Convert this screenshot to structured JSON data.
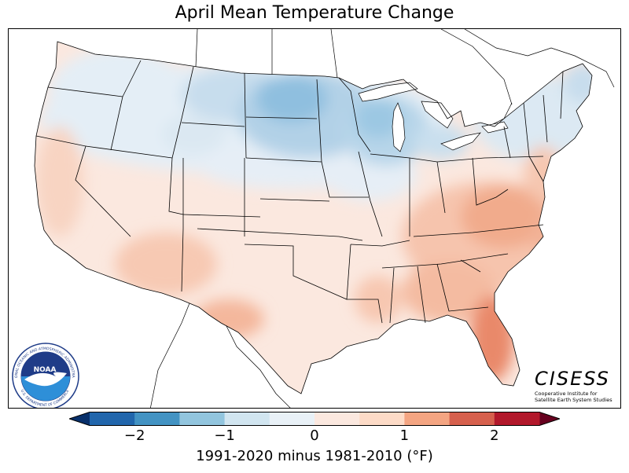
{
  "title": "April Mean Temperature Change",
  "colorbar": {
    "label": "1991-2020 minus 1981-2010 (°F)",
    "range": [
      -2.5,
      2.5
    ],
    "ticks": [
      {
        "value": -2,
        "label": "−2"
      },
      {
        "value": -1,
        "label": "−1"
      },
      {
        "value": 0,
        "label": "0"
      },
      {
        "value": 1,
        "label": "1"
      },
      {
        "value": 2,
        "label": "2"
      }
    ],
    "colors": [
      "#2166ac",
      "#4393c3",
      "#92c5de",
      "#d1e5f0",
      "#e9f1f7",
      "#fbe8df",
      "#fddbc7",
      "#f4a582",
      "#d6604d",
      "#b2182b"
    ],
    "extend": "both"
  },
  "logos": {
    "noaa": {
      "text": "NOAA",
      "ring_top": "NATIONAL OCEANIC AND ATMOSPHERIC ADMINISTRATION",
      "ring_bottom": "U.S. DEPARTMENT OF COMMERCE"
    },
    "cisess": {
      "name": "CISESS",
      "line1": "Cooperative Institute for",
      "line2": "Satellite Earth System Studies"
    }
  }
}
